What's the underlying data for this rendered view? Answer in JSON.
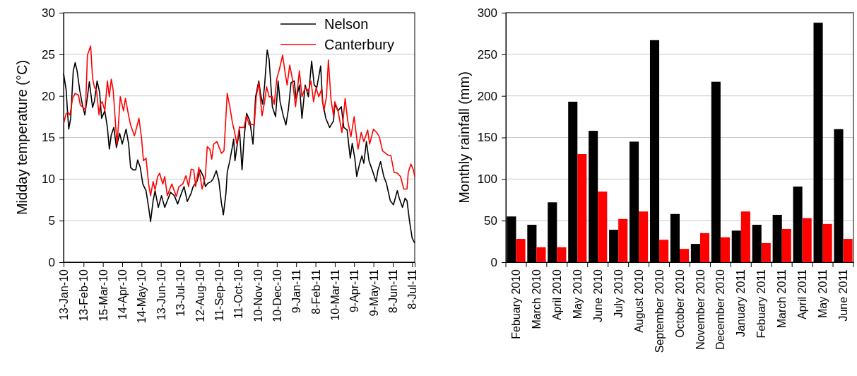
{
  "chart_data": [
    {
      "type": "line",
      "ylabel": "Midday temperature (°C)",
      "xlim": [
        "2010-01-13",
        "2011-07-12"
      ],
      "ylim": [
        0,
        30
      ],
      "yticks": [
        0,
        5,
        10,
        15,
        20,
        25,
        30
      ],
      "xticks": [
        {
          "value": "2010-01-13",
          "label": "13-Jan-10"
        },
        {
          "value": "2010-02-13",
          "label": "13-Feb-10"
        },
        {
          "value": "2010-03-15",
          "label": "15-Mar-10"
        },
        {
          "value": "2010-04-14",
          "label": "14-Apr-10"
        },
        {
          "value": "2010-05-14",
          "label": "14-May-10"
        },
        {
          "value": "2010-06-13",
          "label": "13-Jun-10"
        },
        {
          "value": "2010-07-13",
          "label": "13-Jul-10"
        },
        {
          "value": "2010-08-12",
          "label": "12-Aug-10"
        },
        {
          "value": "2010-09-11",
          "label": "11-Sep-10"
        },
        {
          "value": "2010-10-11",
          "label": "11-Oct-10"
        },
        {
          "value": "2010-11-10",
          "label": "10-Nov-10"
        },
        {
          "value": "2010-12-10",
          "label": "10-Dec-10"
        },
        {
          "value": "2011-01-09",
          "label": "9-Jan-11"
        },
        {
          "value": "2011-02-08",
          "label": "8-Feb-11"
        },
        {
          "value": "2011-03-10",
          "label": "10-Mar-11"
        },
        {
          "value": "2011-04-09",
          "label": "9-Apr-11"
        },
        {
          "value": "2011-05-09",
          "label": "9-May-11"
        },
        {
          "value": "2011-06-08",
          "label": "8-Jun-11"
        },
        {
          "value": "2011-07-08",
          "label": "8-Jul-11"
        }
      ],
      "grid": "y",
      "legend": "top right",
      "marker": "none",
      "line_style": "solid",
      "series": [
        {
          "name": "Nelson",
          "color": "#000000",
          "x": [
            "2010-01-13",
            "2010-01-17",
            "2010-01-19",
            "2010-01-21",
            "2010-01-24",
            "2010-01-28",
            "2010-01-31",
            "2010-02-03",
            "2010-02-07",
            "2010-02-11",
            "2010-02-15",
            "2010-02-19",
            "2010-02-22",
            "2010-02-27",
            "2010-03-02",
            "2010-03-06",
            "2010-03-10",
            "2010-03-13",
            "2010-03-18",
            "2010-03-22",
            "2010-03-25",
            "2010-03-28",
            "2010-04-01",
            "2010-04-05",
            "2010-04-10",
            "2010-04-14",
            "2010-04-20",
            "2010-04-24",
            "2010-04-27",
            "2010-05-01",
            "2010-05-05",
            "2010-05-08",
            "2010-05-12",
            "2010-05-16",
            "2010-05-21",
            "2010-05-25",
            "2010-05-28",
            "2010-06-01",
            "2010-06-04",
            "2010-06-09",
            "2010-06-14",
            "2010-06-19",
            "2010-06-23",
            "2010-06-28",
            "2010-07-04",
            "2010-07-09",
            "2010-07-15",
            "2010-07-19",
            "2010-07-24",
            "2010-07-30",
            "2010-08-02",
            "2010-08-08",
            "2010-08-13",
            "2010-08-18",
            "2010-08-21",
            "2010-08-25",
            "2010-08-30",
            "2010-09-02",
            "2010-09-07",
            "2010-09-11",
            "2010-09-15",
            "2010-09-18",
            "2010-09-22",
            "2010-09-24",
            "2010-09-28",
            "2010-10-02",
            "2010-10-04",
            "2010-10-06",
            "2010-10-10",
            "2010-10-13",
            "2010-10-17",
            "2010-10-20",
            "2010-10-24",
            "2010-10-29",
            "2010-11-03",
            "2010-11-07",
            "2010-11-12",
            "2010-11-15",
            "2010-11-18",
            "2010-11-21",
            "2010-11-25",
            "2010-11-28",
            "2010-12-03",
            "2010-12-08",
            "2010-12-12",
            "2010-12-15",
            "2010-12-20",
            "2010-12-24",
            "2010-12-28",
            "2011-01-01",
            "2011-01-06",
            "2011-01-09",
            "2011-01-14",
            "2011-01-18",
            "2011-01-23",
            "2011-01-28",
            "2011-02-02",
            "2011-02-06",
            "2011-02-10",
            "2011-02-16",
            "2011-02-19",
            "2011-02-24",
            "2011-03-02",
            "2011-03-08",
            "2011-03-10",
            "2011-03-15",
            "2011-03-20",
            "2011-03-24",
            "2011-03-29",
            "2011-04-03",
            "2011-04-06",
            "2011-04-10",
            "2011-04-13",
            "2011-04-17",
            "2011-04-21",
            "2011-04-24",
            "2011-04-28",
            "2011-05-02",
            "2011-05-07",
            "2011-05-13",
            "2011-05-16",
            "2011-05-20",
            "2011-05-25",
            "2011-05-29",
            "2011-06-04",
            "2011-06-09",
            "2011-06-15",
            "2011-06-18",
            "2011-06-23",
            "2011-06-27",
            "2011-06-30",
            "2011-07-04",
            "2011-07-08",
            "2011-07-12"
          ],
          "values": [
            22.7,
            20.7,
            18.2,
            16.0,
            17.3,
            23.0,
            24.0,
            23.0,
            20.7,
            19.0,
            17.7,
            19.9,
            21.7,
            18.6,
            19.4,
            21.8,
            20.4,
            17.3,
            18.2,
            16.2,
            13.6,
            15.3,
            16.2,
            13.8,
            15.5,
            14.2,
            16.0,
            14.2,
            11.4,
            11.1,
            11.1,
            12.3,
            11.4,
            9.4,
            8.6,
            6.6,
            4.9,
            7.4,
            8.6,
            6.6,
            8.0,
            6.6,
            7.4,
            8.4,
            8.0,
            7.0,
            8.3,
            9.1,
            7.3,
            8.3,
            9.1,
            9.7,
            11.1,
            10.3,
            9.1,
            9.5,
            9.7,
            10.0,
            11.0,
            9.8,
            7.1,
            5.7,
            8.3,
            10.8,
            12.2,
            13.9,
            14.8,
            12.2,
            14.4,
            15.9,
            11.1,
            14.8,
            17.9,
            17.0,
            14.2,
            19.9,
            21.8,
            20.1,
            19.0,
            21.3,
            25.5,
            24.4,
            18.7,
            17.5,
            21.8,
            19.3,
            17.6,
            16.5,
            18.4,
            21.6,
            21.8,
            19.6,
            21.3,
            17.3,
            21.3,
            19.9,
            24.2,
            21.3,
            21.0,
            23.6,
            19.3,
            17.3,
            16.2,
            17.0,
            19.0,
            18.2,
            18.7,
            16.2,
            15.9,
            12.5,
            14.3,
            12.5,
            10.3,
            11.7,
            12.8,
            11.9,
            14.5,
            12.2,
            11.1,
            9.7,
            11.1,
            12.1,
            10.3,
            9.5,
            7.4,
            6.9,
            8.6,
            7.7,
            6.6,
            7.7,
            7.4,
            4.9,
            2.9,
            2.3
          ]
        },
        {
          "name": "Canterbury",
          "color": "#ff0000",
          "x": [
            "2010-01-13",
            "2010-01-17",
            "2010-01-20",
            "2010-01-23",
            "2010-01-27",
            "2010-01-31",
            "2010-02-05",
            "2010-02-08",
            "2010-02-11",
            "2010-02-16",
            "2010-02-19",
            "2010-02-24",
            "2010-02-27",
            "2010-03-02",
            "2010-03-05",
            "2010-03-09",
            "2010-03-11",
            "2010-03-14",
            "2010-03-18",
            "2010-03-22",
            "2010-03-25",
            "2010-03-28",
            "2010-03-31",
            "2010-04-03",
            "2010-04-06",
            "2010-04-11",
            "2010-04-16",
            "2010-04-19",
            "2010-04-24",
            "2010-04-27",
            "2010-05-03",
            "2010-05-10",
            "2010-05-14",
            "2010-05-17",
            "2010-05-21",
            "2010-05-25",
            "2010-05-28",
            "2010-06-01",
            "2010-06-04",
            "2010-06-08",
            "2010-06-11",
            "2010-06-16",
            "2010-06-19",
            "2010-06-23",
            "2010-06-30",
            "2010-07-07",
            "2010-07-11",
            "2010-07-17",
            "2010-07-22",
            "2010-07-26",
            "2010-07-30",
            "2010-08-03",
            "2010-08-06",
            "2010-08-11",
            "2010-08-16",
            "2010-08-21",
            "2010-08-24",
            "2010-08-28",
            "2010-08-31",
            "2010-09-03",
            "2010-09-08",
            "2010-09-11",
            "2010-09-15",
            "2010-09-19",
            "2010-09-24",
            "2010-09-28",
            "2010-10-02",
            "2010-10-05",
            "2010-10-09",
            "2010-10-13",
            "2010-10-14",
            "2010-10-20",
            "2010-10-24",
            "2010-10-28",
            "2010-11-01",
            "2010-11-05",
            "2010-11-08",
            "2010-11-12",
            "2010-11-17",
            "2010-11-21",
            "2010-11-24",
            "2010-11-28",
            "2010-12-03",
            "2010-12-06",
            "2010-12-10",
            "2010-12-14",
            "2010-12-19",
            "2010-12-23",
            "2010-12-26",
            "2010-12-30",
            "2011-01-03",
            "2011-01-08",
            "2011-01-14",
            "2011-01-18",
            "2011-01-23",
            "2011-01-28",
            "2011-02-01",
            "2011-02-05",
            "2011-02-09",
            "2011-02-13",
            "2011-02-17",
            "2011-02-21",
            "2011-02-25",
            "2011-02-28",
            "2011-03-04",
            "2011-03-08",
            "2011-03-10",
            "2011-03-15",
            "2011-03-21",
            "2011-03-26",
            "2011-03-30",
            "2011-04-04",
            "2011-04-09",
            "2011-04-15",
            "2011-04-20",
            "2011-04-24",
            "2011-04-30",
            "2011-05-03",
            "2011-05-09",
            "2011-05-14",
            "2011-05-18",
            "2011-05-23",
            "2011-05-31",
            "2011-06-05",
            "2011-06-10",
            "2011-06-15",
            "2011-06-20",
            "2011-06-25",
            "2011-06-30",
            "2011-07-02",
            "2011-07-06",
            "2011-07-10",
            "2011-07-12"
          ],
          "values": [
            16.6,
            17.9,
            18.0,
            17.7,
            19.7,
            20.3,
            20.1,
            18.9,
            18.7,
            18.3,
            24.9,
            26.0,
            22.1,
            21.0,
            20.7,
            17.7,
            19.0,
            19.3,
            18.2,
            21.8,
            19.9,
            22.0,
            20.7,
            17.3,
            14.1,
            19.9,
            18.2,
            19.7,
            17.6,
            16.5,
            15.2,
            17.3,
            14.9,
            12.2,
            12.5,
            9.4,
            8.0,
            9.7,
            8.7,
            10.3,
            10.7,
            9.4,
            10.3,
            8.0,
            9.4,
            7.9,
            9.1,
            9.4,
            10.4,
            9.1,
            11.2,
            11.1,
            9.1,
            11.4,
            8.8,
            10.3,
            13.9,
            13.6,
            12.4,
            14.2,
            14.5,
            13.9,
            13.1,
            13.4,
            20.3,
            18.7,
            16.8,
            15.8,
            14.2,
            16.3,
            16.2,
            16.2,
            17.6,
            16.5,
            16.6,
            16.5,
            19.9,
            21.6,
            17.6,
            19.3,
            21.1,
            19.9,
            19.9,
            19.0,
            22.1,
            23.2,
            24.9,
            22.7,
            21.3,
            23.7,
            22.1,
            18.7,
            23.0,
            19.9,
            21.0,
            20.6,
            21.8,
            19.3,
            21.0,
            19.9,
            20.7,
            18.2,
            19.9,
            24.3,
            19.6,
            17.6,
            19.3,
            18.2,
            15.6,
            19.7,
            17.0,
            15.1,
            17.5,
            13.6,
            15.6,
            14.5,
            15.9,
            14.2,
            16.0,
            15.6,
            15.1,
            13.4,
            12.9,
            12.8,
            10.8,
            10.7,
            10.3,
            8.8,
            8.8,
            10.8,
            11.8,
            11.1,
            10.3
          ]
        }
      ]
    },
    {
      "type": "bar",
      "ylabel": "Monthly rainfall (mm)",
      "categories": [
        "Febuary 2010",
        "March 2010",
        "April 2010",
        "May 2010",
        "June 2010",
        "July 2010",
        "August 2010",
        "September 2010",
        "October 2010",
        "November 2010",
        "December 2010",
        "January 2011",
        "Febuary 2011",
        "March 2011",
        "April 2011",
        "May 2011",
        "June 2011"
      ],
      "ylim": [
        0,
        300
      ],
      "yticks": [
        0,
        50,
        100,
        150,
        200,
        250,
        300
      ],
      "grid": "y",
      "series": [
        {
          "color": "#000000",
          "values": [
            55,
            45,
            72,
            193,
            158,
            39,
            145,
            267,
            58,
            22,
            217,
            38,
            45,
            57,
            91,
            288,
            160
          ]
        },
        {
          "color": "#ff0000",
          "values": [
            28,
            18,
            18,
            130,
            85,
            52,
            61,
            27,
            16,
            35,
            30,
            61,
            23,
            40,
            53,
            46,
            28
          ]
        }
      ]
    }
  ]
}
